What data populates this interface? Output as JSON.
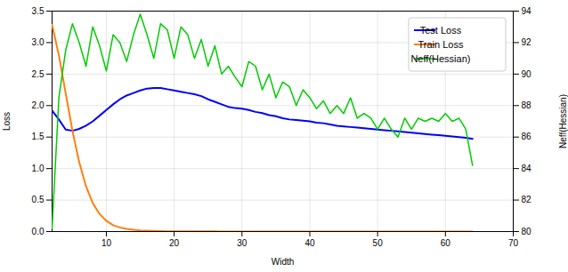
{
  "chart_data": {
    "type": "line",
    "xlabel": "Width",
    "ylabel": "Loss",
    "y2label": "Neff(Hessian)",
    "x": [
      2,
      3,
      4,
      5,
      6,
      7,
      8,
      9,
      10,
      11,
      12,
      13,
      14,
      15,
      16,
      17,
      18,
      19,
      20,
      21,
      22,
      23,
      24,
      25,
      26,
      27,
      28,
      29,
      30,
      31,
      32,
      33,
      34,
      35,
      36,
      37,
      38,
      39,
      40,
      41,
      42,
      43,
      44,
      45,
      46,
      47,
      48,
      49,
      50,
      51,
      52,
      53,
      54,
      55,
      56,
      57,
      58,
      59,
      60,
      61,
      62,
      63,
      64
    ],
    "series": [
      {
        "name": "Test Loss",
        "color": "#0000ff",
        "values": [
          1.92,
          1.78,
          1.62,
          1.6,
          1.63,
          1.68,
          1.75,
          1.84,
          1.93,
          2.02,
          2.1,
          2.16,
          2.2,
          2.24,
          2.27,
          2.28,
          2.28,
          2.26,
          2.24,
          2.22,
          2.2,
          2.18,
          2.15,
          2.1,
          2.06,
          2.02,
          1.98,
          1.96,
          1.95,
          1.93,
          1.9,
          1.88,
          1.85,
          1.83,
          1.8,
          1.78,
          1.77,
          1.76,
          1.75,
          1.73,
          1.72,
          1.7,
          1.68,
          1.67,
          1.66,
          1.65,
          1.64,
          1.63,
          1.62,
          1.61,
          1.6,
          1.59,
          1.58,
          1.57,
          1.56,
          1.55,
          1.54,
          1.53,
          1.52,
          1.51,
          1.5,
          1.49,
          1.47
        ]
      },
      {
        "name": "Train Loss",
        "color": "#ff7f0e",
        "values": [
          3.28,
          2.8,
          2.2,
          1.6,
          1.1,
          0.72,
          0.45,
          0.28,
          0.17,
          0.1,
          0.065,
          0.042,
          0.028,
          0.019,
          0.013,
          0.009,
          0.007,
          0.005,
          0.004,
          0.003,
          0.003,
          0.002,
          0.002,
          0.002,
          0.002,
          0.001,
          0.001,
          0.001,
          0.001,
          0.001,
          0.001,
          0.001,
          0.001,
          0.001,
          0.001,
          0.001,
          0.001,
          0.001,
          0.001,
          0.001,
          0.001,
          0.001,
          0.001,
          0.001,
          0.001,
          0.001,
          0.001,
          0.001,
          0.001,
          0.001,
          0.001,
          0.001,
          0.001,
          0.001,
          0.001,
          0.001,
          0.001,
          0.001,
          0.001,
          0.001,
          0.001,
          0.001,
          0.001
        ]
      },
      {
        "name": "Neff(Hessian)",
        "color": "#00cc00",
        "axis": "y2",
        "values": [
          80.2,
          88.5,
          91.5,
          93.2,
          92.0,
          90.5,
          93.0,
          91.8,
          90.2,
          92.5,
          92.0,
          90.8,
          92.5,
          93.8,
          92.5,
          91.0,
          93.2,
          92.8,
          91.0,
          93.0,
          92.5,
          91.0,
          92.2,
          90.5,
          91.8,
          90.0,
          90.5,
          89.8,
          89.2,
          90.8,
          90.5,
          89.0,
          90.0,
          88.5,
          89.5,
          89.2,
          88.0,
          89.0,
          88.5,
          87.8,
          88.3,
          87.5,
          88.0,
          87.5,
          88.5,
          87.2,
          87.5,
          87.2,
          86.5,
          87.2,
          86.5,
          86.0,
          87.2,
          86.5,
          87.2,
          87.0,
          87.2,
          87.0,
          87.5,
          87.0,
          87.2,
          86.5,
          84.2
        ]
      }
    ],
    "xlim": [
      2,
      70
    ],
    "xticks": [
      10,
      20,
      30,
      40,
      50,
      60,
      70
    ],
    "ylim": [
      0.0,
      3.5
    ],
    "yticks": [
      {
        "value": 0,
        "label": "0.0"
      },
      0.5,
      {
        "value": 1,
        "label": "1.0"
      },
      1.5,
      {
        "value": 2,
        "label": "2.0"
      },
      2.5,
      {
        "value": 3,
        "label": "3.0"
      },
      3.5
    ],
    "y2lim": [
      80,
      94
    ],
    "y2ticks": [
      80,
      82,
      84,
      86,
      88,
      90,
      92,
      94
    ],
    "grid": true,
    "legend": "upper right"
  }
}
